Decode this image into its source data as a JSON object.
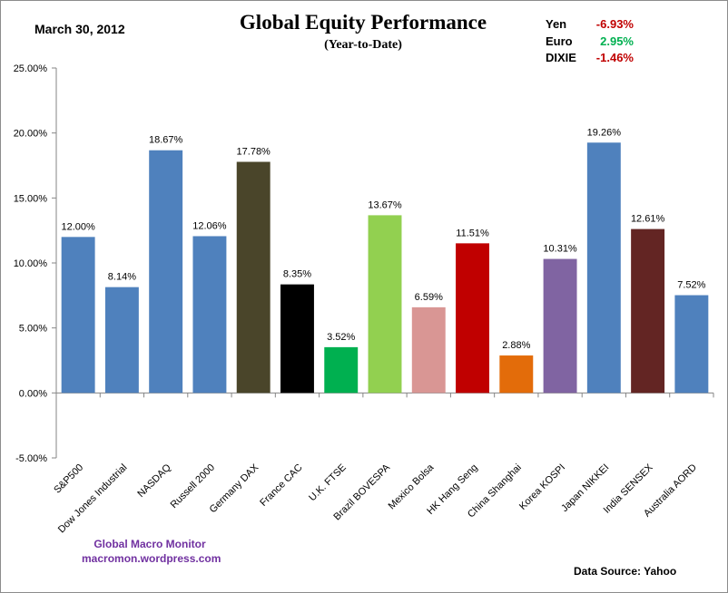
{
  "header": {
    "date": "March 30, 2012",
    "title": "Global Equity Performance",
    "subtitle": "(Year-to-Date)"
  },
  "currencies": [
    {
      "name": "Yen",
      "value": "-6.93%",
      "color": "#c00000"
    },
    {
      "name": "Euro",
      "value": "2.95%",
      "color": "#00b050"
    },
    {
      "name": "DIXIE",
      "value": "-1.46%",
      "color": "#c00000"
    }
  ],
  "footer": {
    "credit_line1": "Global  Macro  Monitor",
    "credit_line2": "macromon.wordpress.com",
    "source": "Data Source:    Yahoo"
  },
  "chart_data": {
    "type": "bar",
    "title": "Global Equity Performance",
    "ylim": [
      -5,
      25
    ],
    "yticks": [
      -5,
      0,
      5,
      10,
      15,
      20,
      25
    ],
    "ytick_labels": [
      "-5.00%",
      "0.00%",
      "5.00%",
      "10.00%",
      "15.00%",
      "20.00%",
      "25.00%"
    ],
    "categories": [
      "S&P500",
      "Dow Jones Industrial",
      "NASDAQ",
      "Russell 2000",
      "Germany DAX",
      "France CAC",
      "U.K. FTSE",
      "Brazil BOVESPA",
      "Mexico Bolsa",
      "HK  Hang Seng",
      "China Shanghai",
      "Korea KOSPI",
      "Japan NIKKEI",
      "India SENSEX",
      "Australia AORD"
    ],
    "values": [
      12.0,
      8.14,
      18.67,
      12.06,
      17.78,
      8.35,
      3.52,
      13.67,
      6.59,
      11.51,
      2.88,
      10.31,
      19.26,
      12.61,
      7.52
    ],
    "labels": [
      "12.00%",
      "8.14%",
      "18.67%",
      "12.06%",
      "17.78%",
      "8.35%",
      "3.52%",
      "13.67%",
      "6.59%",
      "11.51%",
      "2.88%",
      "10.31%",
      "19.26%",
      "12.61%",
      "7.52%"
    ],
    "colors": [
      "#4f81bd",
      "#4f81bd",
      "#4f81bd",
      "#4f81bd",
      "#4a452a",
      "#000000",
      "#00b050",
      "#92d050",
      "#d99694",
      "#c00000",
      "#e36c0a",
      "#8064a2",
      "#4f81bd",
      "#632523",
      "#4f81bd"
    ]
  }
}
